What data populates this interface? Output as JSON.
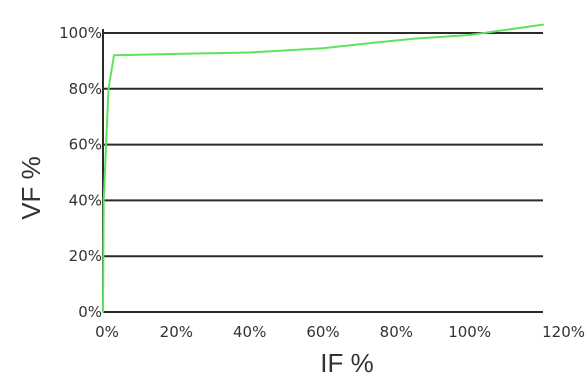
{
  "chart_data": {
    "type": "line",
    "xlabel": "IF %",
    "ylabel": "VF %",
    "xlim": [
      0,
      120
    ],
    "ylim": [
      0,
      100
    ],
    "x_ticks": [
      "0%",
      "20%",
      "40%",
      "60%",
      "80%",
      "100%",
      "120%"
    ],
    "y_ticks": [
      "0%",
      "20%",
      "40%",
      "60%",
      "80%",
      "100%"
    ],
    "grid": "horizontal",
    "legend": "none",
    "series": [
      {
        "color": "#5fe35f",
        "x": [
          0,
          0.2,
          1.5,
          3,
          20,
          40,
          60,
          70,
          85,
          100,
          120
        ],
        "y": [
          0,
          40,
          80,
          92,
          92.5,
          93,
          94.5,
          96,
          98,
          99.3,
          103
        ]
      }
    ]
  }
}
